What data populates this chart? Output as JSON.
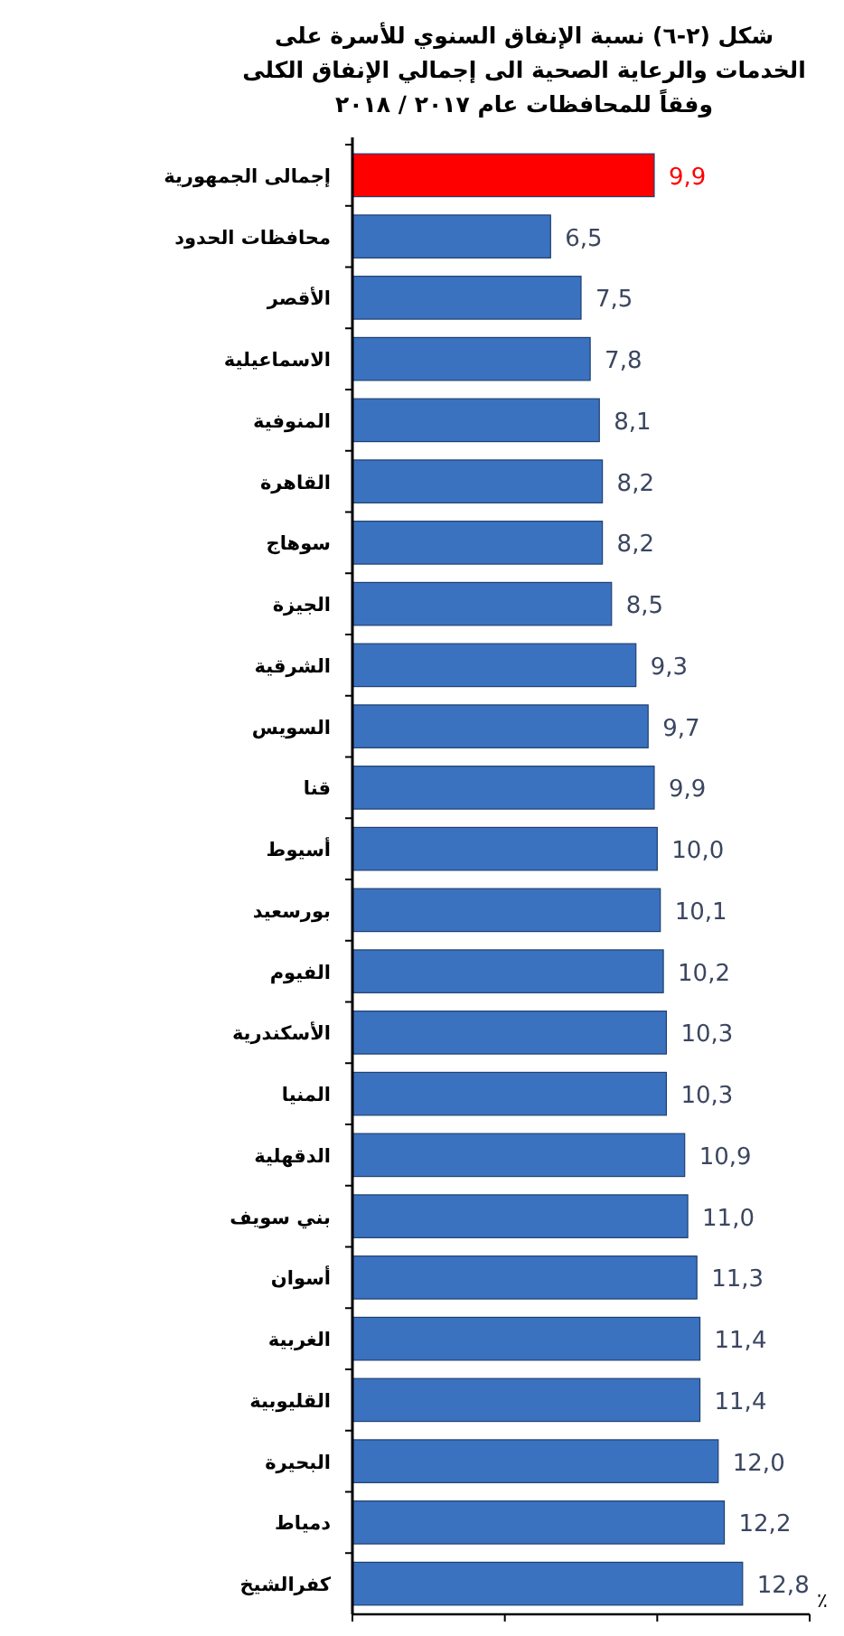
{
  "chart_data": {
    "type": "bar",
    "orientation": "horizontal",
    "title": "شكل (٢-٦) نسبة الإنفاق السنوي للأسرة على الخدمات والرعاية الصحية الى إجمالي الإنفاق الكلى وفقاً للمحافظات عام ٢٠١٧ / ٢٠١٨",
    "xlabel": "٪",
    "categories": [
      "إجمالى الجمهورية",
      "محافظات الحدود",
      "الأقصر",
      "الاسماعيلية",
      "المنوفية",
      "القاهرة",
      "سوهاج",
      "الجيزة",
      "الشرقية",
      "السويس",
      "قنا",
      "أسيوط",
      "بورسعيد",
      "الفيوم",
      "الأسكندرية",
      "المنيا",
      "الدقهلية",
      "بني سويف",
      "أسوان",
      "الغربية",
      "القليوبية",
      "البحيرة",
      "دمياط",
      "كفرالشيخ"
    ],
    "values": [
      9.9,
      6.5,
      7.5,
      7.8,
      8.1,
      8.2,
      8.2,
      8.5,
      9.3,
      9.7,
      9.9,
      10.0,
      10.1,
      10.2,
      10.3,
      10.3,
      10.9,
      11.0,
      11.3,
      11.4,
      11.4,
      12.0,
      12.2,
      12.8
    ],
    "value_labels": [
      "9,9",
      "6,5",
      "7,5",
      "7,8",
      "8,1",
      "8,2",
      "8,2",
      "8,5",
      "9,3",
      "9,7",
      "9,9",
      "10,0",
      "10,1",
      "10,2",
      "10,3",
      "10,3",
      "10,9",
      "11,0",
      "11,3",
      "11,4",
      "11,4",
      "12,0",
      "12,2",
      "12,8"
    ],
    "colors": [
      "#ff0000",
      "#3a72c0",
      "#3a72c0",
      "#3a72c0",
      "#3a72c0",
      "#3a72c0",
      "#3a72c0",
      "#3a72c0",
      "#3a72c0",
      "#3a72c0",
      "#3a72c0",
      "#3a72c0",
      "#3a72c0",
      "#3a72c0",
      "#3a72c0",
      "#3a72c0",
      "#3a72c0",
      "#3a72c0",
      "#3a72c0",
      "#3a72c0",
      "#3a72c0",
      "#3a72c0",
      "#3a72c0",
      "#3a72c0"
    ],
    "xlim": [
      0,
      15
    ],
    "xticks": [
      {
        "value": 0,
        "label": null
      },
      {
        "value": 5,
        "label": null
      },
      {
        "value": 10,
        "label": null
      },
      {
        "value": 15,
        "label": null
      }
    ],
    "tick_labels": "y",
    "grid": false
  }
}
